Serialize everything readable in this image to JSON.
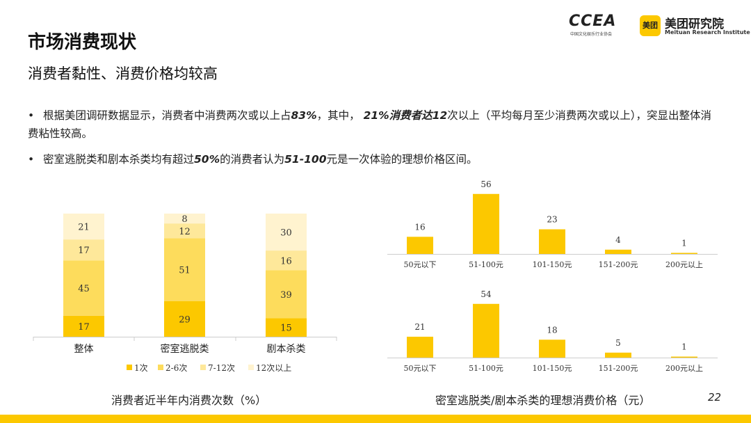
{
  "header": {
    "title": "市场消费现状",
    "subtitle": "消费者黏性、消费价格均较高",
    "logo_ccea": "CCEA",
    "logo_ccea_sub": "中国文化娱乐行业协会",
    "logo_mt_badge": "美团",
    "logo_mt_name": "美团研究院",
    "logo_mt_en": "Meituan Research Institute"
  },
  "bullets": [
    {
      "parts": [
        "根据美团调研数据显示，消费者中消费两次或以上占",
        "83%",
        "，其中， ",
        "21%",
        "消费者达",
        "12",
        "次以上（平均每月至少消费两次或以上），突显出整体消费粘性较高。"
      ]
    },
    {
      "parts": [
        "密室逃脱类和剧本杀类均有超过",
        "50%",
        "的消费者认为",
        "51-100",
        "元是一次体验的理想价格区间。"
      ]
    }
  ],
  "colors": {
    "c1": "#fcc800",
    "c2": "#fddc5c",
    "c3": "#fee89a",
    "c4": "#fff3cf"
  },
  "chart_data": [
    {
      "type": "bar",
      "stacked": true,
      "title": "消费者近半年内消费次数（%）",
      "categories": [
        "整体",
        "密室逃脱类",
        "剧本杀类"
      ],
      "series": [
        {
          "name": "1次",
          "values": [
            17,
            29,
            15
          ]
        },
        {
          "name": "2-6次",
          "values": [
            45,
            51,
            39
          ]
        },
        {
          "name": "7-12次",
          "values": [
            17,
            12,
            16
          ]
        },
        {
          "name": "12次以上",
          "values": [
            21,
            8,
            30
          ]
        }
      ],
      "legend": "bottom",
      "ylim": [
        0,
        100
      ]
    },
    {
      "type": "bar",
      "title": "密室逃脱类/剧本杀类的理想消费价格（元）",
      "categories": [
        "50元以下",
        "51-100元",
        "101-150元",
        "151-200元",
        "200元以上"
      ],
      "values": [
        16,
        56,
        23,
        4,
        1
      ]
    },
    {
      "type": "bar",
      "categories": [
        "50元以下",
        "51-100元",
        "101-150元",
        "151-200元",
        "200元以上"
      ],
      "values": [
        21,
        54,
        18,
        5,
        1
      ]
    }
  ],
  "page_number": "22"
}
